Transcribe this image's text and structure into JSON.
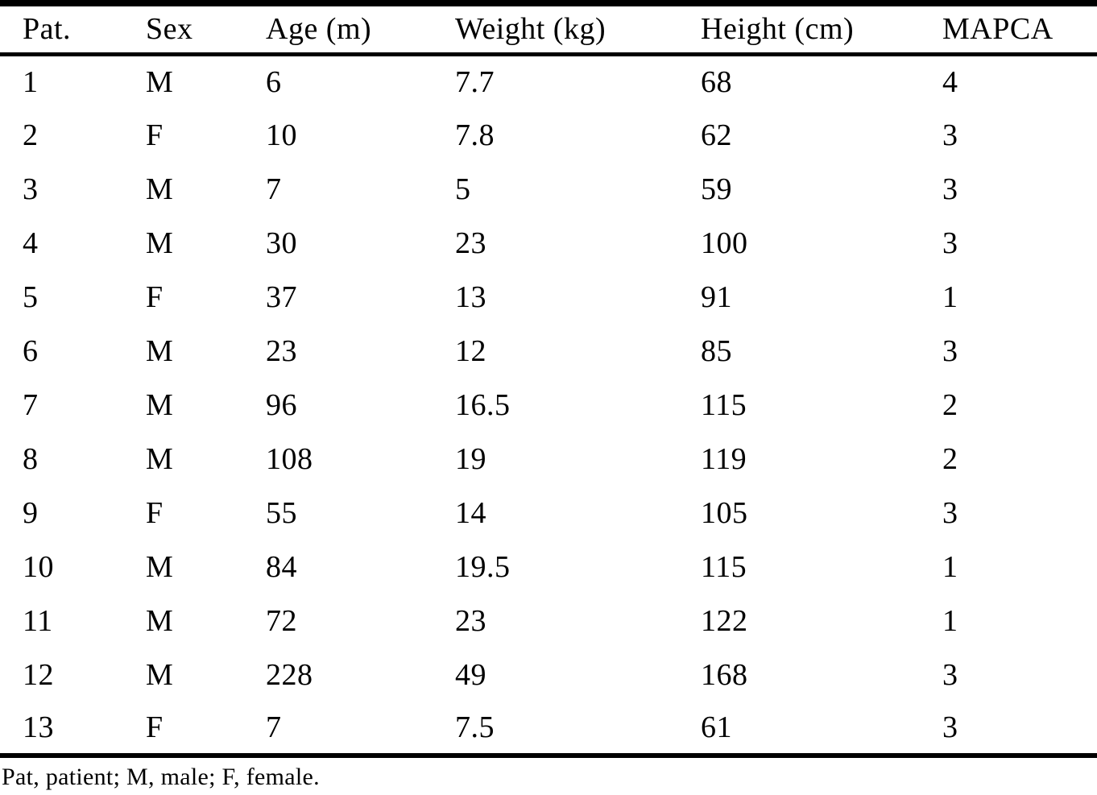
{
  "table": {
    "title_semantic": "patient-characteristics-table",
    "columns": [
      "Pat.",
      "Sex",
      "Age (m)",
      "Weight (kg)",
      "Height (cm)",
      "MAPCA"
    ],
    "rows": [
      [
        "1",
        "M",
        "6",
        "7.7",
        "68",
        "4"
      ],
      [
        "2",
        "F",
        "10",
        "7.8",
        "62",
        "3"
      ],
      [
        "3",
        "M",
        "7",
        "5",
        "59",
        "3"
      ],
      [
        "4",
        "M",
        "30",
        "23",
        "100",
        "3"
      ],
      [
        "5",
        "F",
        "37",
        "13",
        "91",
        "1"
      ],
      [
        "6",
        "M",
        "23",
        "12",
        "85",
        "3"
      ],
      [
        "7",
        "M",
        "96",
        "16.5",
        "115",
        "2"
      ],
      [
        "8",
        "M",
        "108",
        "19",
        "119",
        "2"
      ],
      [
        "9",
        "F",
        "55",
        "14",
        "105",
        "3"
      ],
      [
        "10",
        "M",
        "84",
        "19.5",
        "115",
        "1"
      ],
      [
        "11",
        "M",
        "72",
        "23",
        "122",
        "1"
      ],
      [
        "12",
        "M",
        "228",
        "49",
        "168",
        "3"
      ],
      [
        "13",
        "F",
        "7",
        "7.5",
        "61",
        "3"
      ]
    ],
    "footnote": "Pat, patient; M, male; F, female."
  },
  "chart_data": {
    "type": "table",
    "columns": [
      "Pat.",
      "Sex",
      "Age (m)",
      "Weight (kg)",
      "Height (cm)",
      "MAPCA"
    ],
    "rows": [
      [
        1,
        "M",
        6,
        7.7,
        68,
        4
      ],
      [
        2,
        "F",
        10,
        7.8,
        62,
        3
      ],
      [
        3,
        "M",
        7,
        5,
        59,
        3
      ],
      [
        4,
        "M",
        30,
        23,
        100,
        3
      ],
      [
        5,
        "F",
        37,
        13,
        91,
        1
      ],
      [
        6,
        "M",
        23,
        12,
        85,
        3
      ],
      [
        7,
        "M",
        96,
        16.5,
        115,
        2
      ],
      [
        8,
        "M",
        108,
        19,
        119,
        2
      ],
      [
        9,
        "F",
        55,
        14,
        105,
        3
      ],
      [
        10,
        "M",
        84,
        19.5,
        115,
        1
      ],
      [
        11,
        "M",
        72,
        23,
        122,
        1
      ],
      [
        12,
        "M",
        228,
        49,
        168,
        3
      ],
      [
        13,
        "F",
        7,
        7.5,
        61,
        3
      ]
    ],
    "footnote": "Pat, patient; M, male; F, female."
  },
  "colors": {
    "text": "#000000",
    "border": "#000000",
    "background": "#ffffff"
  }
}
